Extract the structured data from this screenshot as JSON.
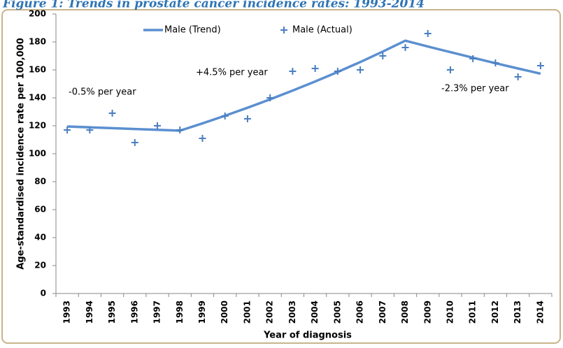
{
  "chart_data": {
    "type": "line",
    "title": "Figure 1: Trends in prostate cancer incidence rates: 1993-2014",
    "x_label": "Year of diagnosis",
    "y_label": "Age-standardised incidence rate per 100,000",
    "categories": [
      "1993",
      "1994",
      "1995",
      "1996",
      "1997",
      "1998",
      "1999",
      "2000",
      "2001",
      "2002",
      "2003",
      "2004",
      "2005",
      "2006",
      "2007",
      "2008",
      "2009",
      "2010",
      "2011",
      "2012",
      "2013",
      "2014"
    ],
    "series": [
      {
        "name": "Male (Trend)",
        "color": "#5b8fd0",
        "style": "line",
        "values": [
          119.5,
          118.9,
          118.3,
          117.7,
          117.1,
          116.5,
          121.7,
          127.2,
          132.9,
          138.9,
          145.2,
          151.7,
          158.5,
          165.6,
          173.1,
          180.9,
          176.7,
          172.7,
          168.7,
          164.8,
          161.0,
          157.3
        ]
      },
      {
        "name": "Male (Actual)",
        "color": "#4a7ebf",
        "style": "marker",
        "values": [
          117,
          117,
          129,
          108,
          120,
          117,
          111,
          127,
          125,
          140,
          159,
          161,
          159,
          160,
          170,
          176,
          186,
          160,
          168,
          165,
          155,
          163
        ]
      }
    ],
    "annotations": [
      "-0.5% per year",
      "+4.5% per year",
      "-2.3% per year"
    ],
    "ylim": [
      0,
      200
    ],
    "yticks": [
      0,
      20,
      40,
      60,
      80,
      100,
      120,
      140,
      160,
      180,
      200
    ],
    "grid": false
  }
}
